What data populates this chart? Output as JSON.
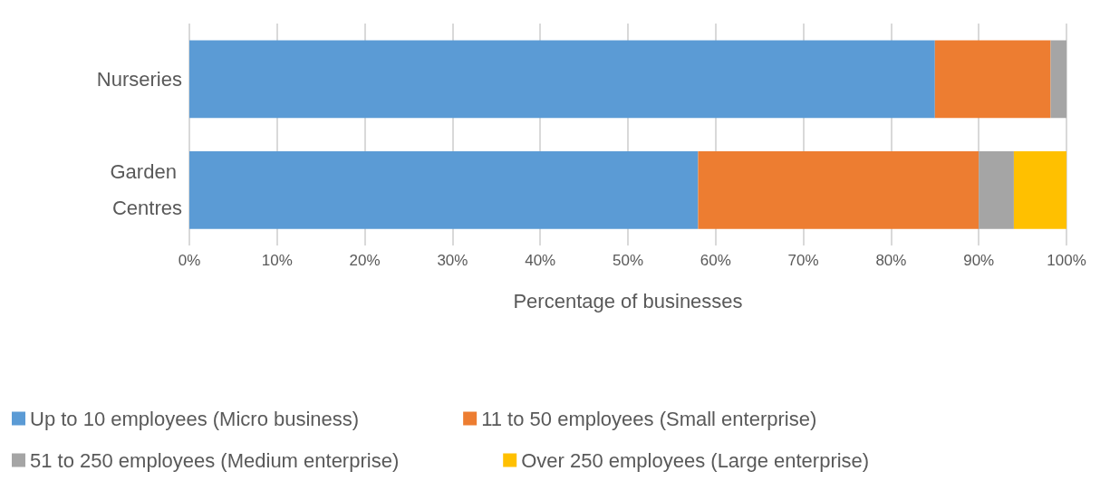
{
  "chart_data": {
    "type": "bar",
    "orientation": "horizontal",
    "stacked": true,
    "xlabel": "Percentage of businesses",
    "categories": [
      "Nurseries",
      "Garden Centres"
    ],
    "series": [
      {
        "name": "Up to 10 employees (Micro business)",
        "color": "#5b9bd5",
        "values": [
          85,
          58
        ]
      },
      {
        "name": "11 to 50 employees (Small enterprise)",
        "color": "#ed7d31",
        "values": [
          13.2,
          32
        ]
      },
      {
        "name": "51 to 250 employees (Medium enterprise)",
        "color": "#a5a5a5",
        "values": [
          1.8,
          4
        ]
      },
      {
        "name": "Over 250 employees (Large enterprise)",
        "color": "#ffc000",
        "values": [
          0,
          6
        ]
      }
    ],
    "xlim": [
      0,
      100
    ],
    "xticks": [
      {
        "value": 0,
        "label": "0%"
      },
      {
        "value": 10,
        "label": "10%"
      },
      {
        "value": 20,
        "label": "20%"
      },
      {
        "value": 30,
        "label": "30%"
      },
      {
        "value": 40,
        "label": "40%"
      },
      {
        "value": 50,
        "label": "50%"
      },
      {
        "value": 60,
        "label": "60%"
      },
      {
        "value": 70,
        "label": "70%"
      },
      {
        "value": 80,
        "label": "80%"
      },
      {
        "value": 90,
        "label": "90%"
      },
      {
        "value": 100,
        "label": "100%"
      }
    ],
    "grid": "x",
    "legend": "bottom"
  }
}
